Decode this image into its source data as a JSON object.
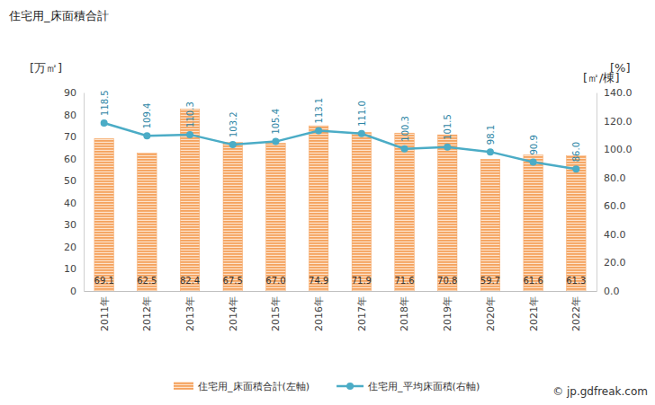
{
  "chart_data": {
    "type": "bar",
    "title": "住宅用_床面積合計",
    "y_label": "[万㎡]",
    "y2_labels": [
      "[㎡/棟]",
      "[%]"
    ],
    "source": "© jp.gdfreak.com",
    "categories": [
      "2011年",
      "2012年",
      "2013年",
      "2014年",
      "2015年",
      "2016年",
      "2017年",
      "2018年",
      "2019年",
      "2020年",
      "2021年",
      "2022年"
    ],
    "series": [
      {
        "name": "住宅用_床面積合計(左軸)",
        "type": "bar",
        "color": "#f5a25d",
        "axis": "y",
        "values": [
          69.1,
          62.5,
          82.4,
          67.5,
          67.0,
          74.9,
          71.9,
          71.6,
          70.8,
          59.7,
          61.6,
          61.3
        ],
        "value_labels": [
          "69.1",
          "62.5",
          "82.4",
          "67.5",
          "67.0",
          "74.9",
          "71.9",
          "71.6",
          "70.8",
          "59.7",
          "61.6",
          "61.3"
        ]
      },
      {
        "name": "住宅用_平均床面積(右軸)",
        "type": "line",
        "color": "#4bacc6",
        "axis": "y2",
        "marker": "circle",
        "values": [
          118.5,
          109.4,
          110.3,
          103.2,
          105.4,
          113.1,
          111.0,
          100.3,
          101.5,
          98.1,
          90.9,
          86.0
        ],
        "value_labels": [
          "118.5",
          "109.4",
          "110.3",
          "103.2",
          "105.4",
          "113.1",
          "111.0",
          "100.3",
          "101.5",
          "98.1",
          "90.9",
          "86.0"
        ]
      }
    ],
    "ylim": [
      0,
      90
    ],
    "yticks": [
      0,
      10,
      20,
      30,
      40,
      50,
      60,
      70,
      80,
      90
    ],
    "y2lim": [
      0,
      140
    ],
    "y2ticks": [
      {
        "value": 0,
        "label": "0.0"
      },
      {
        "value": 20,
        "label": "20.0"
      },
      {
        "value": 40,
        "label": "40.0"
      },
      {
        "value": 60,
        "label": "60.0"
      },
      {
        "value": 80,
        "label": "80.0"
      },
      {
        "value": 100,
        "label": "100.0"
      },
      {
        "value": 120,
        "label": "120.0"
      },
      {
        "value": 140,
        "label": "140.0"
      }
    ],
    "grid": false,
    "data_labels": true,
    "legend": "bottom"
  }
}
